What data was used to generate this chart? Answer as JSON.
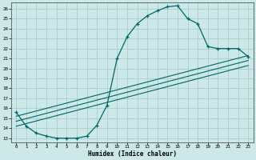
{
  "xlabel": "Humidex (Indice chaleur)",
  "bg_color": "#cce8e8",
  "grid_color": "#b0d0d0",
  "line_color": "#006666",
  "xlim": [
    -0.5,
    23.5
  ],
  "ylim": [
    12.6,
    26.6
  ],
  "xticks": [
    0,
    1,
    2,
    3,
    4,
    5,
    6,
    7,
    8,
    9,
    10,
    11,
    12,
    13,
    14,
    15,
    16,
    17,
    18,
    19,
    20,
    21,
    22,
    23
  ],
  "yticks": [
    13,
    14,
    15,
    16,
    17,
    18,
    19,
    20,
    21,
    22,
    23,
    24,
    25,
    26
  ],
  "curve1_x": [
    0,
    1,
    2,
    3,
    4,
    5,
    6,
    7,
    8,
    9,
    10,
    11,
    12,
    13,
    14,
    15,
    16,
    17,
    18,
    19,
    20,
    21,
    22,
    23
  ],
  "curve1_y": [
    15.6,
    14.2,
    13.5,
    13.2,
    13.0,
    13.0,
    13.0,
    13.2,
    14.3,
    16.3,
    21.0,
    23.2,
    24.5,
    25.3,
    25.8,
    26.2,
    26.3,
    25.0,
    24.5,
    22.2,
    22.0,
    22.0,
    22.0,
    21.2
  ],
  "line2_x": [
    0,
    23
  ],
  "line2_y": [
    15.2,
    21.3
  ],
  "line3_x": [
    0,
    23
  ],
  "line3_y": [
    14.7,
    20.8
  ],
  "line4_x": [
    0,
    23
  ],
  "line4_y": [
    14.2,
    20.3
  ]
}
